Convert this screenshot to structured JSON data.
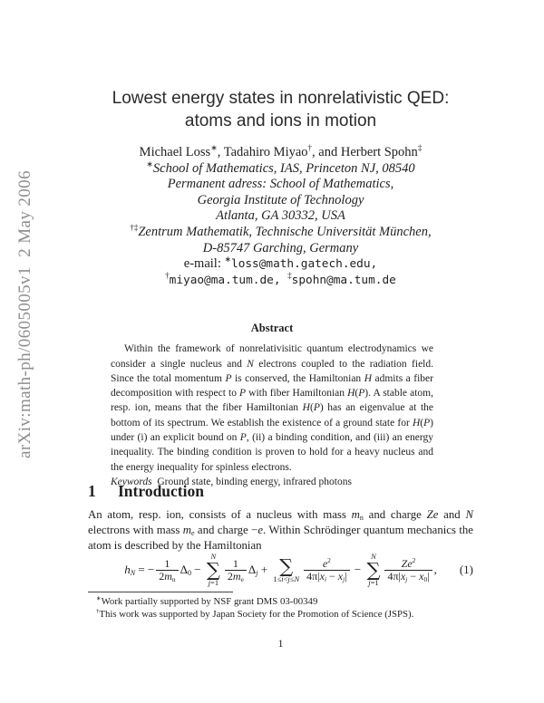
{
  "watermark": "arXiv:math-ph/0605005v1  2 May 2006",
  "title": {
    "line1": "Lowest energy states in nonrelativistic QED:",
    "line2": "atoms and ions in motion"
  },
  "authors": {
    "line": [
      {
        "t": "Michael Loss"
      },
      {
        "t": "∗",
        "s": "sup"
      },
      {
        "t": ", Tadahiro Miyao"
      },
      {
        "t": "†",
        "s": "sup"
      },
      {
        "t": ", and Herbert Spohn"
      },
      {
        "t": "‡",
        "s": "sup"
      }
    ],
    "affiliations": [
      [
        {
          "t": "∗",
          "s": "sup"
        },
        {
          "t": "School of Mathematics, IAS, Princeton NJ, 08540",
          "s": "it"
        }
      ],
      [
        {
          "t": "Permanent adress: School of Mathematics,",
          "s": "it"
        }
      ],
      [
        {
          "t": "Georgia Institute of Technology",
          "s": "it"
        }
      ],
      [
        {
          "t": "Atlanta, GA 30332, USA",
          "s": "it"
        }
      ],
      [
        {
          "t": "†‡",
          "s": "sup"
        },
        {
          "t": "Zentrum Mathematik, Technische Universität München,",
          "s": "it"
        }
      ],
      [
        {
          "t": "D-85747 Garching, Germany",
          "s": "it"
        }
      ]
    ],
    "emails": [
      [
        {
          "t": "e-mail: "
        },
        {
          "t": "∗",
          "s": "sup"
        },
        {
          "t": "loss@math.gatech.edu,",
          "s": "tt"
        }
      ],
      [
        {
          "t": "†",
          "s": "sup"
        },
        {
          "t": "miyao@ma.tum.de, ",
          "s": "tt"
        },
        {
          "t": "‡",
          "s": "sup"
        },
        {
          "t": "spohn@ma.tum.de",
          "s": "tt"
        }
      ]
    ]
  },
  "abstract": {
    "heading": "Abstract",
    "body": [
      {
        "t": "Within the framework of nonrelativisitic quantum electrodynamics we consider a single nucleus and "
      },
      {
        "t": "N",
        "s": "it"
      },
      {
        "t": " electrons coupled to the radiation field. Since the total momentum "
      },
      {
        "t": "P",
        "s": "it"
      },
      {
        "t": " is conserved, the Hamiltonian "
      },
      {
        "t": "H",
        "s": "it"
      },
      {
        "t": " admits a fiber decomposition with respect to "
      },
      {
        "t": "P",
        "s": "it"
      },
      {
        "t": " with fiber Hamiltonian "
      },
      {
        "t": "H",
        "s": "it"
      },
      {
        "t": "("
      },
      {
        "t": "P",
        "s": "it"
      },
      {
        "t": "). A stable atom, resp. ion, means that the fiber Hamiltonian "
      },
      {
        "t": "H",
        "s": "it"
      },
      {
        "t": "("
      },
      {
        "t": "P",
        "s": "it"
      },
      {
        "t": ") has an eigenvalue at the bottom of its spectrum. We establish the existence of a ground state for "
      },
      {
        "t": "H",
        "s": "it"
      },
      {
        "t": "("
      },
      {
        "t": "P",
        "s": "it"
      },
      {
        "t": ") under (i) an explicit bound on "
      },
      {
        "t": "P",
        "s": "it"
      },
      {
        "t": ", (ii) a binding condition, and (iii) an energy inequality. The binding condition is proven to hold for a heavy nucleus and the energy inequality for spinless electrons."
      }
    ],
    "keywords": [
      {
        "t": "Keywords",
        "s": "it"
      },
      {
        "t": "  Ground state, binding energy, infrared photons"
      }
    ]
  },
  "section": {
    "number": "1",
    "title": "Introduction"
  },
  "intro": {
    "paragraph": [
      {
        "t": "An atom, resp. ion, consists of a nucleus with mass "
      },
      {
        "t": "m",
        "s": "it"
      },
      {
        "t": "n",
        "s": "sub"
      },
      {
        "t": " and charge "
      },
      {
        "t": "Ze",
        "s": "it"
      },
      {
        "t": " and "
      },
      {
        "t": "N",
        "s": "it"
      },
      {
        "t": " electrons with mass "
      },
      {
        "t": "m",
        "s": "it"
      },
      {
        "t": "e",
        "s": "sub"
      },
      {
        "t": " and charge −"
      },
      {
        "t": "e",
        "s": "it"
      },
      {
        "t": ". Within Schrödinger quantum mechanics the atom is described by the Hamiltonian"
      }
    ]
  },
  "equation": {
    "lhs": [
      {
        "t": "h",
        "s": "it"
      },
      {
        "t": "N",
        "s": "sub it"
      },
      {
        "t": " = −"
      }
    ],
    "frac1": {
      "num": [
        {
          "t": "1"
        }
      ],
      "den": [
        {
          "t": "2"
        },
        {
          "t": "m",
          "s": "it"
        },
        {
          "t": "n",
          "s": "sub"
        }
      ]
    },
    "mid1": [
      {
        "t": "Δ"
      },
      {
        "t": "0",
        "s": "sub"
      },
      {
        "t": " − "
      }
    ],
    "sigma": "∑",
    "sum1": {
      "top": [
        {
          "t": "N",
          "s": "it"
        }
      ],
      "bot": [
        {
          "t": "j",
          "s": "it"
        },
        {
          "t": "=1"
        }
      ]
    },
    "frac2": {
      "num": [
        {
          "t": "1"
        }
      ],
      "den": [
        {
          "t": "2"
        },
        {
          "t": "m",
          "s": "it"
        },
        {
          "t": "e",
          "s": "sub"
        }
      ]
    },
    "mid2": [
      {
        "t": "Δ"
      },
      {
        "t": "j",
        "s": "sub it"
      },
      {
        "t": " + "
      }
    ],
    "sum2": {
      "top": [],
      "bot": [
        {
          "t": "1≤"
        },
        {
          "t": "i",
          "s": "it"
        },
        {
          "t": "<"
        },
        {
          "t": "j",
          "s": "it"
        },
        {
          "t": "≤"
        },
        {
          "t": "N",
          "s": "it"
        }
      ]
    },
    "frac3": {
      "num": [
        {
          "t": "e",
          "s": "it"
        },
        {
          "t": "2",
          "s": "sup"
        }
      ],
      "den": [
        {
          "t": "4π|"
        },
        {
          "t": "x",
          "s": "it"
        },
        {
          "t": "i",
          "s": "sub it"
        },
        {
          "t": " − "
        },
        {
          "t": "x",
          "s": "it"
        },
        {
          "t": "j",
          "s": "sub it"
        },
        {
          "t": "|"
        }
      ]
    },
    "mid3": [
      {
        "t": " − "
      }
    ],
    "sum3": {
      "top": [
        {
          "t": "N",
          "s": "it"
        }
      ],
      "bot": [
        {
          "t": "j",
          "s": "it"
        },
        {
          "t": "=1"
        }
      ]
    },
    "frac4": {
      "num": [
        {
          "t": "Z",
          "s": "it"
        },
        {
          "t": "e",
          "s": "it"
        },
        {
          "t": "2",
          "s": "sup"
        }
      ],
      "den": [
        {
          "t": "4π|"
        },
        {
          "t": "x",
          "s": "it"
        },
        {
          "t": "j",
          "s": "sub it"
        },
        {
          "t": " − "
        },
        {
          "t": "x",
          "s": "it"
        },
        {
          "t": "0",
          "s": "sub"
        },
        {
          "t": "|"
        }
      ]
    },
    "tail": [
      {
        "t": ","
      }
    ],
    "number": "(1)"
  },
  "footnotes": [
    [
      {
        "t": "∗",
        "s": "sup"
      },
      {
        "t": "Work partially supported by NSF grant DMS 03-00349"
      }
    ],
    [
      {
        "t": "†",
        "s": "sup"
      },
      {
        "t": "This work was supported by Japan Society for the Promotion of Science (JSPS)."
      }
    ]
  ],
  "page_number": "1"
}
